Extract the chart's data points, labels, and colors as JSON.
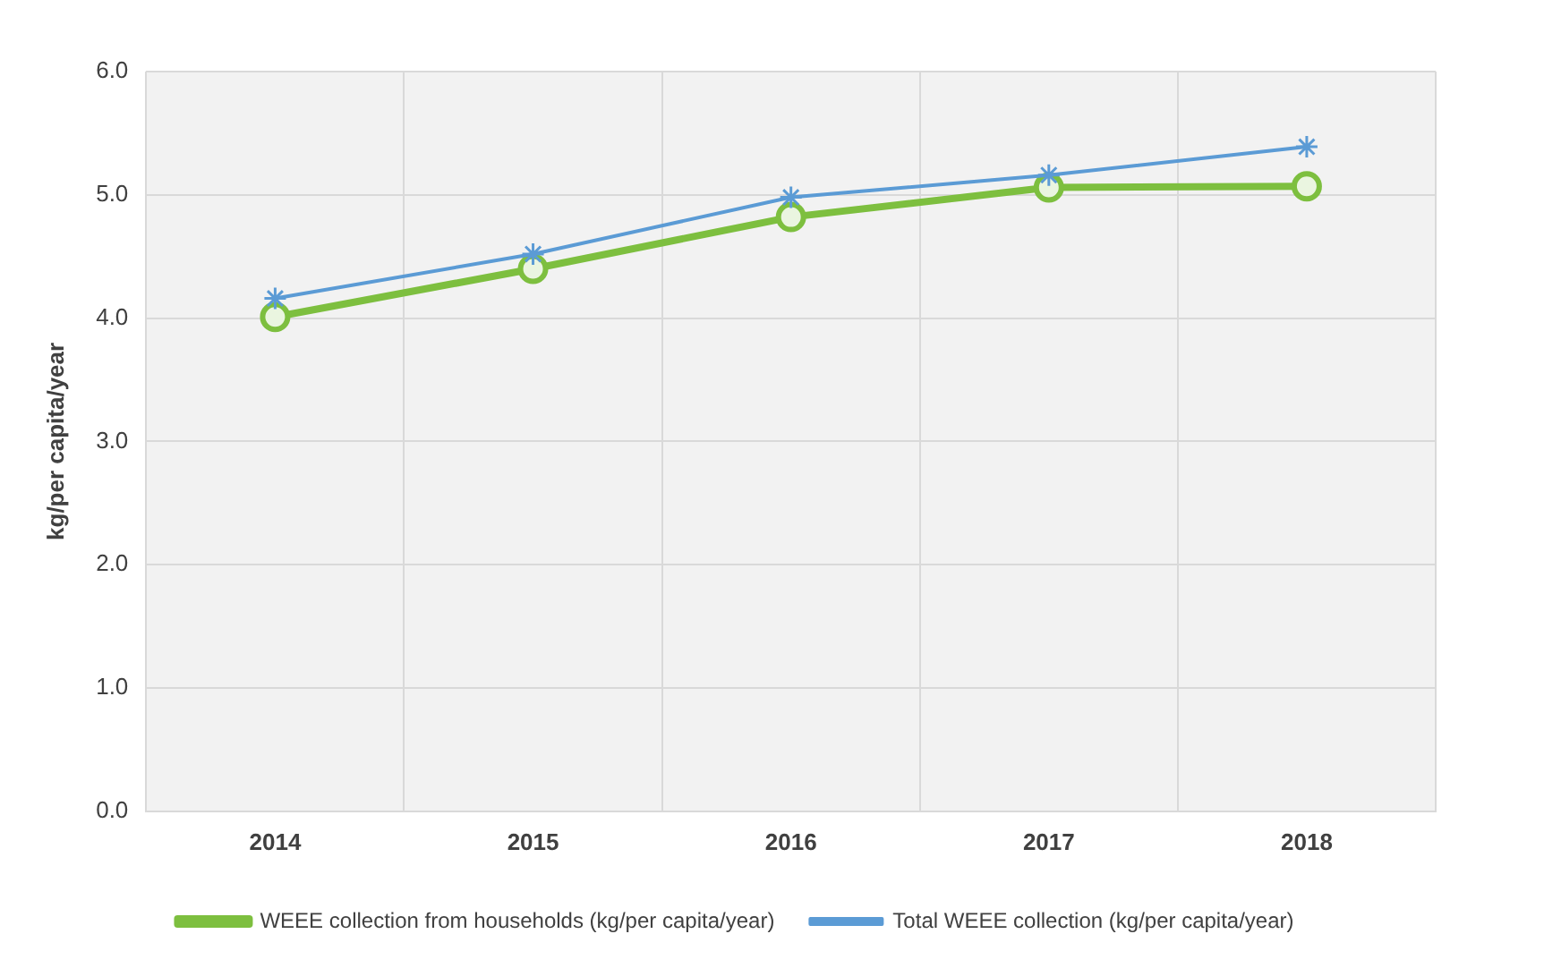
{
  "chart_data": {
    "type": "line",
    "ylabel": "kg/per capita/year",
    "categories": [
      "2014",
      "2015",
      "2016",
      "2017",
      "2018"
    ],
    "series": [
      {
        "name": "WEEE collection from households (kg/per capita/year)",
        "color": "#7dbf3f",
        "values": [
          4.01,
          4.4,
          4.82,
          5.06,
          5.07
        ],
        "marker": "circle"
      },
      {
        "name": "Total WEEE collection (kg/per capita/year)",
        "color": "#5b9bd5",
        "values": [
          4.16,
          4.52,
          4.98,
          5.16,
          5.39
        ],
        "marker": "cross"
      }
    ],
    "ylim": [
      0,
      6
    ],
    "yticks": [
      {
        "value": 0,
        "label": "0.0"
      },
      {
        "value": 1,
        "label": "1.0"
      },
      {
        "value": 2,
        "label": "2.0"
      },
      {
        "value": 3,
        "label": "3.0"
      },
      {
        "value": 4,
        "label": "4.0"
      },
      {
        "value": 5,
        "label": "5.0"
      },
      {
        "value": 6,
        "label": "6.0"
      }
    ],
    "grid": true,
    "legend": "bottom"
  }
}
